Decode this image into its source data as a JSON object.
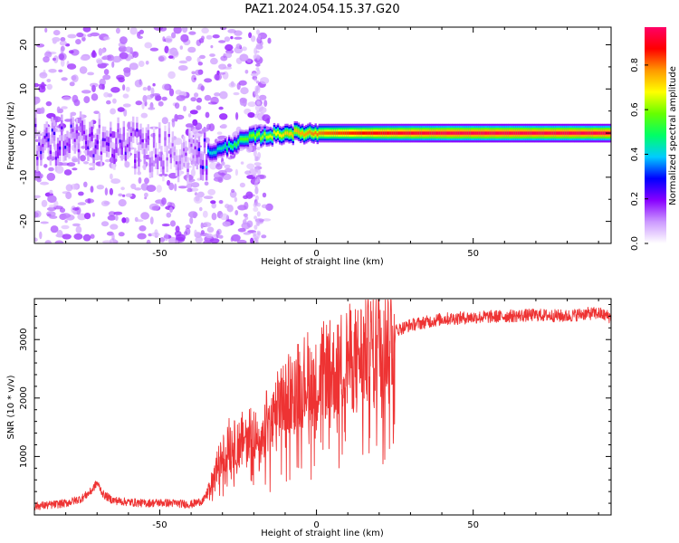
{
  "title": "PAZ1.2024.054.15.37.G20",
  "chart_data": [
    {
      "type": "heatmap",
      "xlabel": "Height of straight line (km)",
      "ylabel": "Frequency (Hz)",
      "xlim": [
        -90,
        94
      ],
      "ylim": [
        -25,
        24
      ],
      "xticks": [
        -50,
        0,
        50
      ],
      "yticks": [
        -20,
        -10,
        0,
        10,
        20
      ],
      "colorbar": {
        "label": "Normalized spectral amplitude",
        "range": [
          0,
          0.97
        ],
        "ticks": [
          0.0,
          0.2,
          0.4,
          0.6,
          0.8
        ],
        "colormap": [
          "#ffffff",
          "#cc99ff",
          "#8800ff",
          "#0000ff",
          "#00ccff",
          "#00ff66",
          "#66ff00",
          "#ffff00",
          "#ff9900",
          "#ff0000",
          "#ff0066"
        ]
      },
      "ridge": [
        {
          "x": -80,
          "f": -2.0,
          "a": 0.25
        },
        {
          "x": -70,
          "f": -1.5,
          "a": 0.22
        },
        {
          "x": -60,
          "f": -2.5,
          "a": 0.22
        },
        {
          "x": -50,
          "f": -4.0,
          "a": 0.18
        },
        {
          "x": -40,
          "f": -5.0,
          "a": 0.15
        },
        {
          "x": -35,
          "f": -4.5,
          "a": 0.4
        },
        {
          "x": -30,
          "f": -3.5,
          "a": 0.45
        },
        {
          "x": -25,
          "f": -2.0,
          "a": 0.55
        },
        {
          "x": -20,
          "f": -0.8,
          "a": 0.6
        },
        {
          "x": -15,
          "f": -0.5,
          "a": 0.65
        },
        {
          "x": -10,
          "f": 0.0,
          "a": 0.72
        },
        {
          "x": 0,
          "f": 0.0,
          "a": 0.8
        },
        {
          "x": 10,
          "f": 0.0,
          "a": 0.85
        },
        {
          "x": 20,
          "f": 0.0,
          "a": 0.9
        },
        {
          "x": 40,
          "f": 0.0,
          "a": 0.95
        },
        {
          "x": 94,
          "f": 0.0,
          "a": 0.95
        }
      ]
    },
    {
      "type": "line",
      "xlabel": "Height of straight line (km)",
      "ylabel": "SNR (10 * v/v)",
      "xlim": [
        -90,
        94
      ],
      "ylim": [
        0,
        3700
      ],
      "xticks": [
        -50,
        0,
        50
      ],
      "yticks": [
        1000,
        2000,
        3000
      ],
      "series": [
        {
          "color": "#ee3333",
          "x": [
            -90,
            -85,
            -80,
            -75,
            -72,
            -70,
            -68,
            -65,
            -60,
            -55,
            -50,
            -45,
            -40,
            -36,
            -34,
            -32,
            -30,
            -28,
            -26,
            -24,
            -22,
            -20,
            -18,
            -16,
            -14,
            -12,
            -10,
            -8,
            -5,
            -2,
            0,
            2,
            4,
            6,
            8,
            10,
            12,
            15,
            18,
            20,
            25,
            30,
            35,
            40,
            50,
            60,
            70,
            80,
            85,
            90,
            94
          ],
          "values": [
            150,
            170,
            200,
            280,
            400,
            550,
            350,
            250,
            220,
            200,
            210,
            200,
            180,
            250,
            450,
            800,
            1000,
            1250,
            1200,
            1300,
            1400,
            1500,
            1000,
            1600,
            1550,
            1900,
            2000,
            2200,
            2250,
            2400,
            2200,
            2450,
            2500,
            2400,
            2600,
            2700,
            2650,
            2800,
            2850,
            3000,
            3150,
            3250,
            3300,
            3350,
            3380,
            3400,
            3420,
            3400,
            3440,
            3450,
            3380
          ]
        }
      ]
    }
  ]
}
